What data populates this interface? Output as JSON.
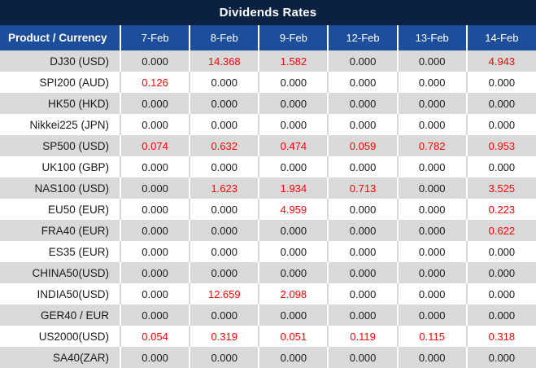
{
  "title": "Dividends Rates",
  "columns": [
    "Product / Currency",
    "7-Feb",
    "8-Feb",
    "9-Feb",
    "12-Feb",
    "13-Feb",
    "14-Feb"
  ],
  "rows": [
    {
      "product": "DJ30 (USD)",
      "values": [
        "0.000",
        "14.368",
        "1.582",
        "0.000",
        "0.000",
        "4.943"
      ]
    },
    {
      "product": "SPI200 (AUD)",
      "values": [
        "0.126",
        "0.000",
        "0.000",
        "0.000",
        "0.000",
        "0.000"
      ]
    },
    {
      "product": "HK50 (HKD)",
      "values": [
        "0.000",
        "0.000",
        "0.000",
        "0.000",
        "0.000",
        "0.000"
      ]
    },
    {
      "product": "Nikkei225 (JPN)",
      "values": [
        "0.000",
        "0.000",
        "0.000",
        "0.000",
        "0.000",
        "0.000"
      ]
    },
    {
      "product": "SP500 (USD)",
      "values": [
        "0.074",
        "0.632",
        "0.474",
        "0.059",
        "0.782",
        "0.953"
      ]
    },
    {
      "product": "UK100 (GBP)",
      "values": [
        "0.000",
        "0.000",
        "0.000",
        "0.000",
        "0.000",
        "0.000"
      ]
    },
    {
      "product": "NAS100 (USD)",
      "values": [
        "0.000",
        "1.623",
        "1.934",
        "0.713",
        "0.000",
        "3.525"
      ]
    },
    {
      "product": "EU50 (EUR)",
      "values": [
        "0.000",
        "0.000",
        "4.959",
        "0.000",
        "0.000",
        "0.223"
      ]
    },
    {
      "product": "FRA40 (EUR)",
      "values": [
        "0.000",
        "0.000",
        "0.000",
        "0.000",
        "0.000",
        "0.622"
      ]
    },
    {
      "product": "ES35 (EUR)",
      "values": [
        "0.000",
        "0.000",
        "0.000",
        "0.000",
        "0.000",
        "0.000"
      ]
    },
    {
      "product": "CHINA50(USD)",
      "values": [
        "0.000",
        "0.000",
        "0.000",
        "0.000",
        "0.000",
        "0.000"
      ]
    },
    {
      "product": "INDIA50(USD)",
      "values": [
        "0.000",
        "12.659",
        "2.098",
        "0.000",
        "0.000",
        "0.000"
      ]
    },
    {
      "product": "GER40 / EUR",
      "values": [
        "0.000",
        "0.000",
        "0.000",
        "0.000",
        "0.000",
        "0.000"
      ]
    },
    {
      "product": "US2000(USD)",
      "values": [
        "0.054",
        "0.319",
        "0.051",
        "0.119",
        "0.115",
        "0.318"
      ]
    },
    {
      "product": "SA40(ZAR)",
      "values": [
        "0.000",
        "0.000",
        "0.000",
        "0.000",
        "0.000",
        "0.000"
      ]
    }
  ],
  "colors": {
    "title_bg": "#0a2142",
    "header_bg": "#1d4e9b",
    "header_text": "#ffffff",
    "row_alt_bg": "#d9d9d9",
    "row_bg": "#ffffff",
    "zero_value_text": "#1a1a1a",
    "nonzero_value_text": "#ff0000"
  }
}
